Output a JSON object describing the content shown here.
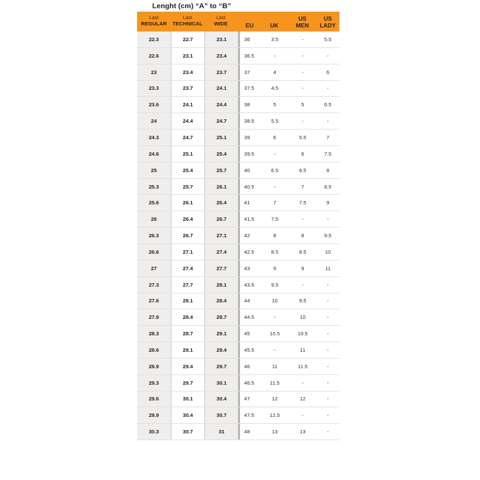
{
  "title": "Lenght (cm) “A” to “B”",
  "header": {
    "regular": {
      "top": "Last",
      "bottom": "REGULAR"
    },
    "technical": {
      "top": "Last",
      "bottom": "TECHNICAL"
    },
    "wide": {
      "top": "Last",
      "bottom": "WIDE"
    },
    "eu": "EU",
    "uk": "UK",
    "us_men": {
      "top": "US",
      "bottom": "MEN"
    },
    "us_lady": {
      "top": "US",
      "bottom": "LADY"
    }
  },
  "accent_color": "#f7941d",
  "rows": [
    [
      "22.3",
      "22.7",
      "23.1",
      "36",
      "3.5",
      "-",
      "5.5"
    ],
    [
      "22.6",
      "23.1",
      "23.4",
      "36.5",
      "-",
      "-",
      "-"
    ],
    [
      "23",
      "23.4",
      "23.7",
      "37",
      "4",
      "-",
      "6"
    ],
    [
      "23.3",
      "23.7",
      "24.1",
      "37.5",
      "4.5",
      "-",
      "-"
    ],
    [
      "23.6",
      "24.1",
      "24.4",
      "38",
      "5",
      "5",
      "6.5"
    ],
    [
      "24",
      "24.4",
      "24.7",
      "38.5",
      "5.5",
      "-",
      "-"
    ],
    [
      "24.3",
      "24.7",
      "25.1",
      "39",
      "6",
      "5.5",
      "7"
    ],
    [
      "24.6",
      "25.1",
      "25.4",
      "39.5",
      "-",
      "6",
      "7.5"
    ],
    [
      "25",
      "25.4",
      "25.7",
      "40",
      "6.5",
      "6.5",
      "8"
    ],
    [
      "25.3",
      "25.7",
      "26.1",
      "40.5",
      "-",
      "7",
      "8.5"
    ],
    [
      "25.6",
      "26.1",
      "26.4",
      "41",
      "7",
      "7.5",
      "9"
    ],
    [
      "26",
      "26.4",
      "26.7",
      "41.5",
      "7.5",
      "-",
      "-"
    ],
    [
      "26.3",
      "26.7",
      "27.1",
      "42",
      "8",
      "8",
      "9.5"
    ],
    [
      "26.6",
      "27.1",
      "27.4",
      "42.5",
      "8.5",
      "8.5",
      "10"
    ],
    [
      "27",
      "27.4",
      "27.7",
      "43",
      "9",
      "9",
      "11"
    ],
    [
      "27.3",
      "27.7",
      "28.1",
      "43.5",
      "9.5",
      "-",
      "-"
    ],
    [
      "27.6",
      "28.1",
      "28.4",
      "44",
      "10",
      "9.5",
      "-"
    ],
    [
      "27.9",
      "28.4",
      "28.7",
      "44.5",
      "-",
      "10",
      "-"
    ],
    [
      "28.3",
      "28.7",
      "29.1",
      "45",
      "10.5",
      "10.5",
      "-"
    ],
    [
      "28.6",
      "29.1",
      "29.4",
      "45.5",
      "-",
      "11",
      "-"
    ],
    [
      "28.9",
      "29.4",
      "29.7",
      "46",
      "11",
      "11.5",
      "-"
    ],
    [
      "29.3",
      "29.7",
      "30.1",
      "46.5",
      "11.5",
      "-",
      "-"
    ],
    [
      "29.6",
      "30.1",
      "30.4",
      "47",
      "12",
      "12",
      "-"
    ],
    [
      "29.9",
      "30.4",
      "30.7",
      "47.5",
      "12.5",
      "-",
      "-"
    ],
    [
      "30.3",
      "30.7",
      "31",
      "48",
      "13",
      "13",
      "-"
    ]
  ]
}
